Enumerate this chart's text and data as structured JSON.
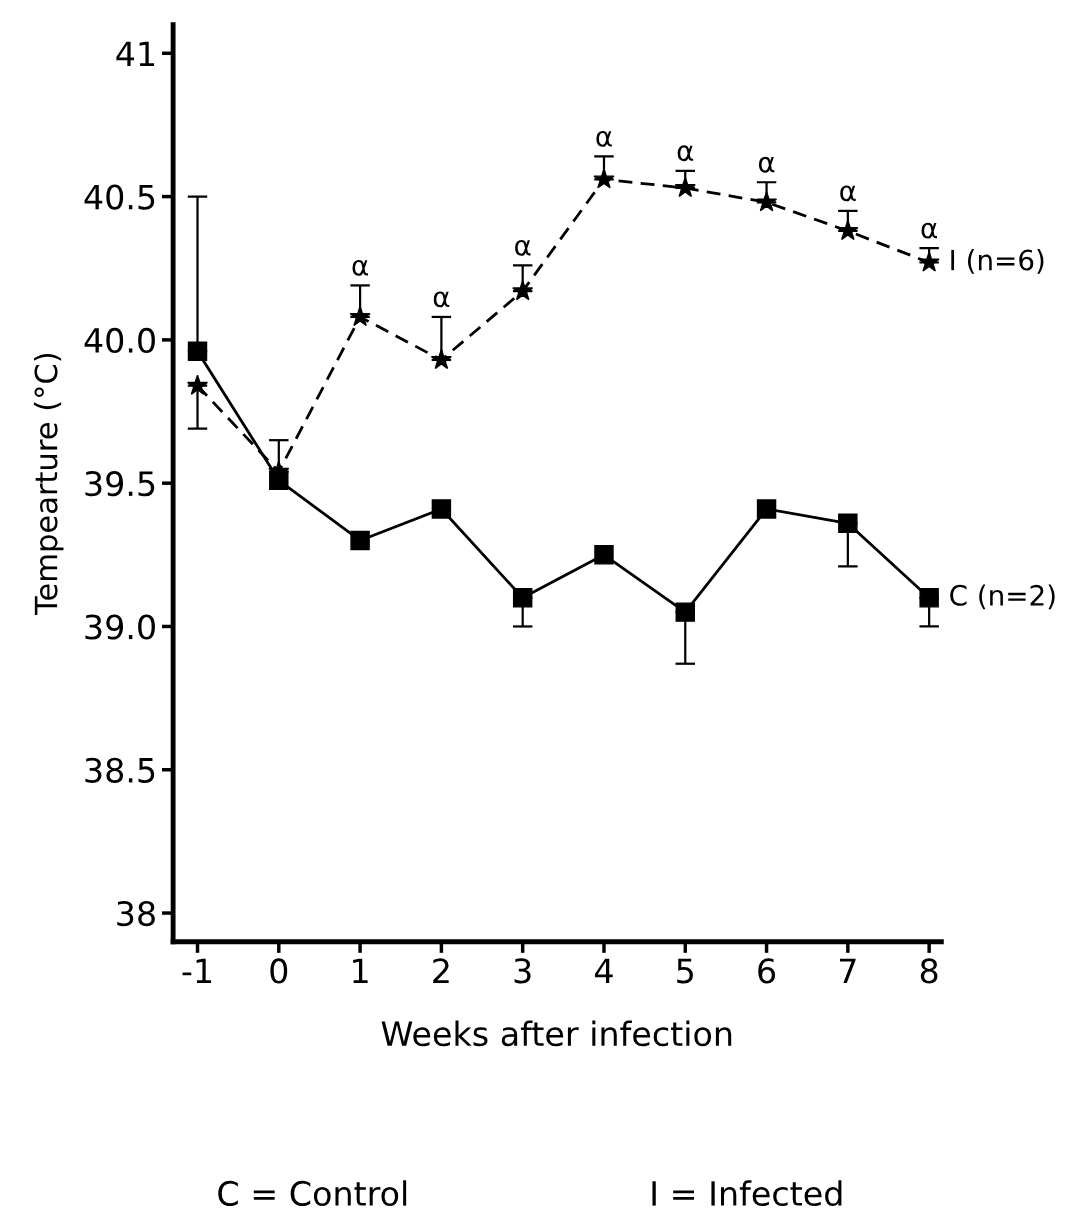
{
  "chart_data": {
    "type": "line",
    "xlabel": "Weeks after infection",
    "ylabel": "Tempearture (°C)",
    "x": [
      -1,
      0,
      1,
      2,
      3,
      4,
      5,
      6,
      7,
      8
    ],
    "xlim": [
      -1.3,
      8.15
    ],
    "xticks": [
      -1,
      0,
      1,
      2,
      3,
      4,
      5,
      6,
      7,
      8
    ],
    "ylim": [
      37.9,
      41.1
    ],
    "yticks": [
      38,
      {
        "value": 38.5,
        "label": "38.5"
      },
      {
        "value": 39.0,
        "label": "39.0"
      },
      {
        "value": 39.5,
        "label": "39.5"
      },
      {
        "value": 40.0,
        "label": "40.0"
      },
      {
        "value": 40.5,
        "label": "40.5"
      },
      41
    ],
    "grid": false,
    "legend": false,
    "series": [
      {
        "name": "C (n=2)",
        "color": "#000000",
        "marker": "square",
        "line_style": "solid",
        "values": [
          39.96,
          39.51,
          39.3,
          39.41,
          39.1,
          39.25,
          39.05,
          39.41,
          39.36,
          39.1
        ],
        "errors": [
          [
            39.96,
            40.5
          ],
          null,
          null,
          null,
          [
            39.0,
            39.1
          ],
          null,
          [
            38.87,
            39.05
          ],
          null,
          [
            39.21,
            39.36
          ],
          [
            39.0,
            39.1
          ]
        ]
      },
      {
        "name": "I (n=6)",
        "color": "#000000",
        "marker": "star",
        "line_style": "dashed",
        "values": [
          39.84,
          39.54,
          40.08,
          39.93,
          40.17,
          40.56,
          40.53,
          40.48,
          40.38,
          40.27
        ],
        "errors": [
          [
            39.69,
            39.84
          ],
          [
            39.54,
            39.65
          ],
          [
            40.08,
            40.19
          ],
          [
            39.93,
            40.08
          ],
          [
            40.17,
            40.26
          ],
          [
            40.56,
            40.64
          ],
          [
            40.53,
            40.59
          ],
          [
            40.48,
            40.55
          ],
          [
            40.38,
            40.45
          ],
          [
            40.27,
            40.32
          ]
        ]
      }
    ],
    "annotations": [
      {
        "text": "α",
        "x": 1,
        "y": 40.19
      },
      {
        "text": "α",
        "x": 2,
        "y": 40.08
      },
      {
        "text": "α",
        "x": 3,
        "y": 40.26
      },
      {
        "text": "α",
        "x": 4,
        "y": 40.64
      },
      {
        "text": "α",
        "x": 5,
        "y": 40.59
      },
      {
        "text": "α",
        "x": 6,
        "y": 40.55
      },
      {
        "text": "α",
        "x": 7,
        "y": 40.45
      },
      {
        "text": "α",
        "x": 8,
        "y": 40.32
      },
      "C = Control",
      "I = Infected"
    ]
  }
}
